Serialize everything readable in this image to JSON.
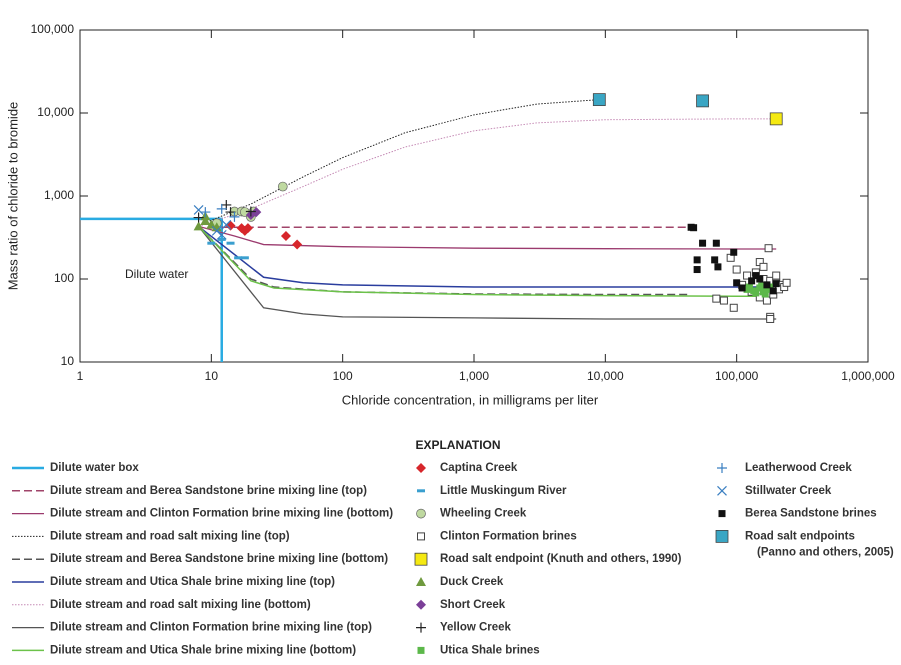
{
  "chart_data": {
    "type": "scatter",
    "x_label": "Chloride concentration, in milligrams per liter",
    "y_label": "Mass ratio of chloride to bromide",
    "annotation": "Dilute water",
    "legend_title": "EXPLANATION",
    "log_x": true,
    "log_y": true,
    "xlim": [
      1,
      1000000
    ],
    "ylim": [
      10,
      100000
    ],
    "xticks": [
      1,
      10,
      100,
      {
        "value": 1000,
        "label": "1,000"
      },
      {
        "value": 10000,
        "label": "10,000"
      },
      {
        "value": 100000,
        "label": "100,000"
      },
      {
        "value": 1000000,
        "label": "1,000,000"
      }
    ],
    "yticks": [
      10,
      100,
      {
        "value": 1000,
        "label": "1,000"
      },
      {
        "value": 10000,
        "label": "10,000"
      },
      {
        "value": 100000,
        "label": "100,000"
      }
    ],
    "series": [
      {
        "name": "Dilute water box",
        "kind": "line",
        "style": "solid",
        "width": 2.5,
        "color": "#29abe2",
        "x": [
          1,
          12,
          12
        ],
        "y": [
          530,
          530,
          10
        ]
      },
      {
        "name": "Dilute stream and Berea Sandstone brine mixing line (top)",
        "kind": "line",
        "style": "dashed",
        "width": 1.5,
        "color": "#a0446a",
        "x": [
          12,
          45000
        ],
        "y": [
          420,
          420
        ]
      },
      {
        "name": "Dilute stream and Clinton Formation brine mixing line (bottom)",
        "kind": "line",
        "style": "solid",
        "width": 1.3,
        "color": "#9b3a6e",
        "x": [
          8,
          15,
          25,
          100,
          1000,
          10000,
          100000,
          200000
        ],
        "y": [
          430,
          330,
          260,
          245,
          235,
          232,
          230,
          230
        ]
      },
      {
        "name": "Dilute stream and road salt mixing line (top)",
        "kind": "line",
        "style": "dotted",
        "width": 1,
        "color": "#222222",
        "x": [
          8,
          20,
          50,
          100,
          300,
          1000,
          3000,
          9000
        ],
        "y": [
          440,
          800,
          1700,
          2900,
          5800,
          9500,
          12800,
          14500
        ]
      },
      {
        "name": "Dilute stream and Berea Sandstone brine mixing line (bottom)",
        "kind": "line",
        "style": "dashed",
        "width": 1.5,
        "color": "#555555",
        "x": [
          8,
          20,
          30,
          100,
          1000,
          10000,
          45000
        ],
        "y": [
          430,
          100,
          80,
          70,
          66,
          65,
          65
        ]
      },
      {
        "name": "Dilute stream and Utica Shale brine mixing line (top)",
        "kind": "line",
        "style": "solid",
        "width": 1.5,
        "color": "#2a3d9e",
        "x": [
          8,
          25,
          50,
          100,
          1000,
          10000,
          100000,
          150000
        ],
        "y": [
          430,
          105,
          90,
          85,
          80,
          80,
          80,
          80
        ]
      },
      {
        "name": "Dilute stream and road salt mixing line (bottom)",
        "kind": "line",
        "style": "dotted",
        "width": 1,
        "color": "#c58ab5",
        "x": [
          8,
          20,
          50,
          100,
          300,
          1000,
          3000,
          10000,
          100000,
          200000
        ],
        "y": [
          430,
          700,
          1300,
          2100,
          3900,
          6100,
          7600,
          8300,
          8500,
          8500
        ]
      },
      {
        "name": "Dilute stream and Clinton Formation brine mixing line (top)",
        "kind": "line",
        "style": "solid",
        "width": 1.3,
        "color": "#555555",
        "x": [
          8,
          25,
          50,
          100,
          1000,
          10000,
          100000,
          200000
        ],
        "y": [
          430,
          45,
          38,
          35,
          34,
          33,
          33,
          33
        ]
      },
      {
        "name": "Dilute stream and Utica Shale brine mixing line (bottom)",
        "kind": "line",
        "style": "solid",
        "width": 1.5,
        "color": "#6cc24a",
        "x": [
          8,
          20,
          30,
          100,
          1000,
          10000,
          100000,
          150000
        ],
        "y": [
          430,
          95,
          78,
          70,
          65,
          63,
          62,
          62
        ]
      },
      {
        "name": "Captina Creek",
        "kind": "points",
        "marker": "diamond",
        "color": "#d7262b",
        "x": [
          14,
          17,
          18,
          19,
          37,
          45
        ],
        "y": [
          440,
          410,
          380,
          410,
          330,
          260
        ]
      },
      {
        "name": "Little Muskingum River",
        "kind": "points",
        "marker": "dash",
        "color": "#3a9fcf",
        "x": [
          10,
          12,
          14,
          16,
          18
        ],
        "y": [
          270,
          300,
          270,
          180,
          180
        ]
      },
      {
        "name": "Wheeling Creek",
        "kind": "points",
        "marker": "circle",
        "color": "#bfd9a0",
        "x": [
          11,
          15,
          17,
          18,
          20,
          21,
          35
        ],
        "y": [
          470,
          650,
          650,
          640,
          560,
          650,
          1300
        ]
      },
      {
        "name": "Clinton Formation brines",
        "kind": "points",
        "marker": "open-square",
        "color": "#444444",
        "x": [
          175000,
          150000,
          90000,
          100000,
          120000,
          140000,
          160000,
          180000,
          200000,
          220000,
          130000,
          150000,
          170000,
          190000,
          210000,
          230000,
          80000,
          70000,
          95000,
          180000,
          180000,
          160000,
          200000,
          240000,
          110000
        ],
        "y": [
          235,
          160,
          180,
          130,
          110,
          120,
          100,
          95,
          90,
          85,
          70,
          60,
          55,
          65,
          75,
          80,
          55,
          58,
          45,
          35,
          33,
          140,
          110,
          90,
          85
        ]
      },
      {
        "name": "Road salt endpoint (Knuth and others, 1990)",
        "kind": "points",
        "marker": "big-square",
        "color": "#f5e911",
        "x": [
          200000
        ],
        "y": [
          8500
        ]
      },
      {
        "name": "Duck Creek",
        "kind": "points",
        "marker": "triangle",
        "color": "#6f9a3e",
        "x": [
          8,
          9,
          10,
          11,
          9
        ],
        "y": [
          430,
          500,
          450,
          420,
          570
        ]
      },
      {
        "name": "Short Creek",
        "kind": "points",
        "marker": "diamond",
        "color": "#7b3f98",
        "x": [
          22,
          20
        ],
        "y": [
          640,
          590
        ]
      },
      {
        "name": "Yellow Creek",
        "kind": "points",
        "marker": "plus",
        "color": "#222222",
        "x": [
          13,
          14,
          20,
          8
        ],
        "y": [
          780,
          640,
          650,
          550
        ]
      },
      {
        "name": "Utica Shale brines",
        "kind": "points",
        "marker": "square",
        "color": "#5cb84a",
        "x": [
          120000,
          135000,
          150000,
          160000,
          170000,
          180000,
          140000,
          155000,
          125000,
          165000
        ],
        "y": [
          75,
          72,
          78,
          70,
          75,
          80,
          68,
          82,
          80,
          66
        ]
      },
      {
        "name": "Leatherwood Creek",
        "kind": "points",
        "marker": "plus",
        "color": "#3a7fc1",
        "x": [
          9,
          12,
          15
        ],
        "y": [
          640,
          700,
          560
        ]
      },
      {
        "name": "Stillwater Creek",
        "kind": "points",
        "marker": "cross",
        "color": "#3a7fc1",
        "x": [
          8,
          11,
          12,
          13
        ],
        "y": [
          680,
          380,
          340,
          450
        ]
      },
      {
        "name": "Berea Sandstone brines",
        "kind": "points",
        "marker": "square",
        "color": "#111111",
        "x": [
          45000,
          47000,
          55000,
          50000,
          50000,
          70000,
          68000,
          72000,
          95000,
          100000,
          110000,
          130000,
          150000,
          170000,
          190000,
          140000,
          200000
        ],
        "y": [
          420,
          415,
          270,
          170,
          130,
          270,
          170,
          140,
          210,
          90,
          78,
          95,
          100,
          85,
          72,
          110,
          88
        ]
      },
      {
        "name": "Road salt endpoints",
        "source": "(Panno and others, 2005)",
        "kind": "points",
        "marker": "big-square",
        "color": "#3aa6c4",
        "x": [
          9000,
          55000
        ],
        "y": [
          14500,
          14000
        ]
      }
    ]
  }
}
